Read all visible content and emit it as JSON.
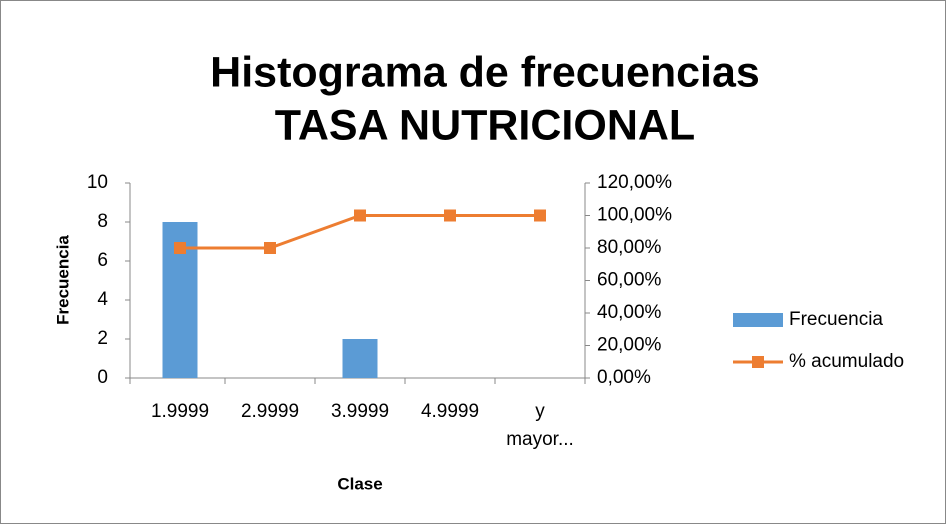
{
  "chart_data": {
    "type": "bar",
    "title": "Histograma de frecuencias",
    "subtitle": "TASA NUTRICIONAL",
    "x_label": "Clase",
    "y_label": "Frecuencia",
    "categories": [
      "1.9999",
      "2.9999",
      "3.9999",
      "4.9999",
      "y mayor..."
    ],
    "series": [
      {
        "name": "Frecuencia",
        "type": "bar",
        "color": "#5b9bd5",
        "values": [
          8,
          0,
          2,
          0,
          0
        ]
      },
      {
        "name": "% acumulado",
        "type": "line",
        "axis": "y2",
        "color": "#ed7d31",
        "values": [
          80,
          80,
          100,
          100,
          100
        ]
      }
    ],
    "ylim": [
      0,
      10
    ],
    "yticks": [
      0,
      2,
      4,
      6,
      8,
      10
    ],
    "y2lim": [
      0,
      120
    ],
    "y2ticks": [
      {
        "value": 0,
        "label": "0,00%"
      },
      {
        "value": 20,
        "label": "20,00%"
      },
      {
        "value": 40,
        "label": "40,00%"
      },
      {
        "value": 60,
        "label": "60,00%"
      },
      {
        "value": 80,
        "label": "80,00%"
      },
      {
        "value": 100,
        "label": "100,00%"
      },
      {
        "value": 120,
        "label": "120,00%"
      }
    ],
    "grid": false,
    "legend": "right"
  }
}
